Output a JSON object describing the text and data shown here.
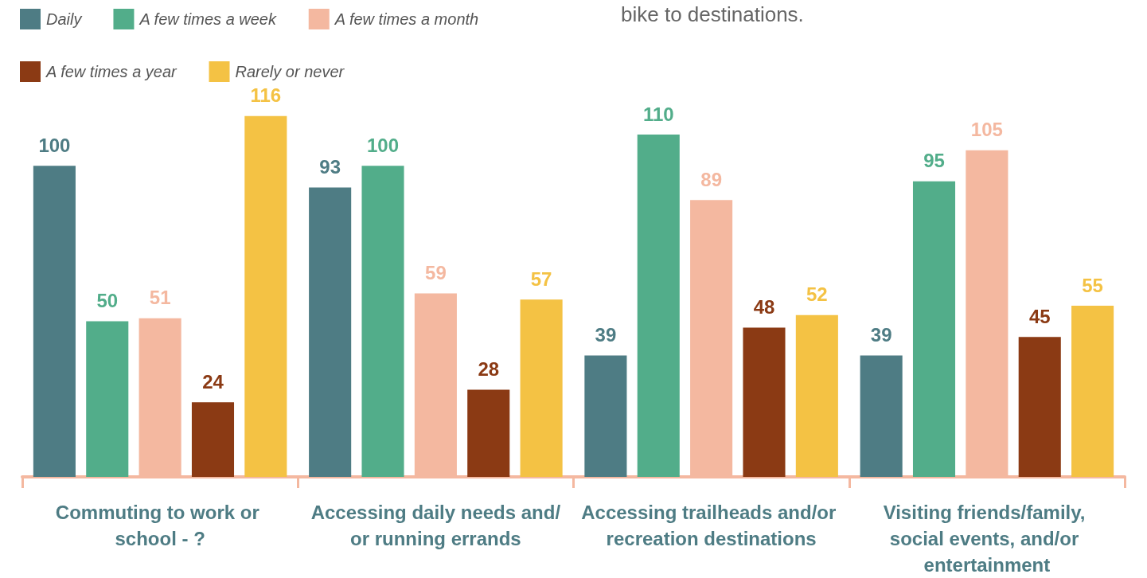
{
  "chart_data": {
    "type": "bar",
    "title": "bike to destinations.",
    "categories": [
      "Commuting to work or school - ?",
      "Accessing daily needs and/or running errands",
      "Accessing trailheads and/or recreation destinations",
      "Visiting friends/family, social events, and/or entertainment"
    ],
    "series": [
      {
        "name": "Daily",
        "color": "#4e7c84",
        "values": [
          100,
          93,
          39,
          39
        ]
      },
      {
        "name": "A few times a week",
        "color": "#52ad8a",
        "values": [
          50,
          100,
          110,
          95
        ]
      },
      {
        "name": "A few times a month",
        "color": "#f4b8a0",
        "values": [
          51,
          59,
          89,
          105
        ]
      },
      {
        "name": "A few times a year",
        "color": "#8b3a14",
        "values": [
          24,
          28,
          48,
          45
        ]
      },
      {
        "name": "Rarely or never",
        "color": "#f4c244",
        "values": [
          116,
          57,
          52,
          55
        ]
      }
    ],
    "data_labels": true,
    "legend": "top left",
    "tick_labels": "x"
  }
}
